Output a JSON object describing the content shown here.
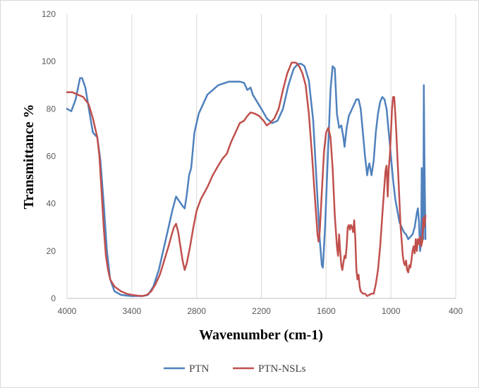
{
  "chart_data": {
    "type": "line",
    "xlabel": "Wavenumber (cm-1)",
    "ylabel": "Transmittance %",
    "xlim": [
      4000,
      400
    ],
    "ylim": [
      0,
      120
    ],
    "x_reversed": true,
    "x_ticks": [
      4000,
      3400,
      2800,
      2200,
      1600,
      1000,
      400
    ],
    "y_ticks": [
      0,
      20,
      40,
      60,
      80,
      100,
      120
    ],
    "grid": "vertical",
    "legend_position": "bottom",
    "series": [
      {
        "name": "PTN",
        "color": "#4f81bd",
        "points": [
          [
            4000,
            80
          ],
          [
            3960,
            79
          ],
          [
            3920,
            84
          ],
          [
            3880,
            93
          ],
          [
            3860,
            93
          ],
          [
            3830,
            89
          ],
          [
            3790,
            78
          ],
          [
            3760,
            70
          ],
          [
            3720,
            68
          ],
          [
            3690,
            58
          ],
          [
            3660,
            40
          ],
          [
            3630,
            20
          ],
          [
            3600,
            8
          ],
          [
            3560,
            3
          ],
          [
            3500,
            1.5
          ],
          [
            3450,
            1.2
          ],
          [
            3400,
            1
          ],
          [
            3300,
            1
          ],
          [
            3250,
            1.5
          ],
          [
            3200,
            5
          ],
          [
            3150,
            12
          ],
          [
            3100,
            22
          ],
          [
            3060,
            30
          ],
          [
            3020,
            38
          ],
          [
            2990,
            43
          ],
          [
            2960,
            41
          ],
          [
            2930,
            39
          ],
          [
            2910,
            38
          ],
          [
            2890,
            44
          ],
          [
            2870,
            52
          ],
          [
            2850,
            55
          ],
          [
            2820,
            70
          ],
          [
            2780,
            78
          ],
          [
            2700,
            86
          ],
          [
            2600,
            90
          ],
          [
            2500,
            91.5
          ],
          [
            2400,
            91.5
          ],
          [
            2360,
            91
          ],
          [
            2330,
            88
          ],
          [
            2300,
            89
          ],
          [
            2280,
            86
          ],
          [
            2200,
            80
          ],
          [
            2150,
            76
          ],
          [
            2100,
            74
          ],
          [
            2050,
            75
          ],
          [
            2000,
            80
          ],
          [
            1950,
            90
          ],
          [
            1900,
            97
          ],
          [
            1860,
            99
          ],
          [
            1830,
            99
          ],
          [
            1800,
            98
          ],
          [
            1760,
            92
          ],
          [
            1720,
            75
          ],
          [
            1690,
            50
          ],
          [
            1660,
            25
          ],
          [
            1640,
            14
          ],
          [
            1630,
            13
          ],
          [
            1610,
            30
          ],
          [
            1580,
            65
          ],
          [
            1560,
            88
          ],
          [
            1540,
            98
          ],
          [
            1520,
            97
          ],
          [
            1500,
            78
          ],
          [
            1480,
            72
          ],
          [
            1460,
            73
          ],
          [
            1440,
            68
          ],
          [
            1430,
            64
          ],
          [
            1410,
            72
          ],
          [
            1390,
            77
          ],
          [
            1370,
            79
          ],
          [
            1340,
            82
          ],
          [
            1320,
            84
          ],
          [
            1300,
            84
          ],
          [
            1280,
            80
          ],
          [
            1260,
            70
          ],
          [
            1240,
            60
          ],
          [
            1220,
            52
          ],
          [
            1210,
            55
          ],
          [
            1200,
            57
          ],
          [
            1180,
            52
          ],
          [
            1160,
            58
          ],
          [
            1140,
            70
          ],
          [
            1120,
            78
          ],
          [
            1100,
            83
          ],
          [
            1080,
            85
          ],
          [
            1060,
            84
          ],
          [
            1040,
            80
          ],
          [
            1020,
            70
          ],
          [
            1000,
            60
          ],
          [
            980,
            50
          ],
          [
            960,
            42
          ],
          [
            940,
            37
          ],
          [
            920,
            32
          ],
          [
            900,
            30
          ],
          [
            880,
            28
          ],
          [
            860,
            27
          ],
          [
            840,
            25
          ],
          [
            820,
            26
          ],
          [
            800,
            27
          ],
          [
            780,
            30
          ],
          [
            760,
            36
          ],
          [
            750,
            38
          ],
          [
            740,
            32
          ],
          [
            730,
            20
          ],
          [
            720,
            24
          ],
          [
            715,
            55
          ],
          [
            710,
            30
          ],
          [
            705,
            40
          ],
          [
            700,
            25
          ],
          [
            695,
            90
          ],
          [
            690,
            60
          ],
          [
            680,
            25
          ]
        ]
      },
      {
        "name": "PTN-NSLs",
        "color": "#c0504d",
        "points": [
          [
            4000,
            87
          ],
          [
            3950,
            87
          ],
          [
            3900,
            86
          ],
          [
            3850,
            85
          ],
          [
            3800,
            82
          ],
          [
            3760,
            76
          ],
          [
            3720,
            68
          ],
          [
            3700,
            60
          ],
          [
            3680,
            45
          ],
          [
            3660,
            30
          ],
          [
            3640,
            18
          ],
          [
            3620,
            12
          ],
          [
            3600,
            8
          ],
          [
            3560,
            5
          ],
          [
            3500,
            3
          ],
          [
            3450,
            2
          ],
          [
            3400,
            1.5
          ],
          [
            3350,
            1.2
          ],
          [
            3300,
            1
          ],
          [
            3260,
            1.5
          ],
          [
            3220,
            3
          ],
          [
            3180,
            6
          ],
          [
            3140,
            10
          ],
          [
            3100,
            16
          ],
          [
            3060,
            22
          ],
          [
            3030,
            27
          ],
          [
            3010,
            30
          ],
          [
            2990,
            31.5
          ],
          [
            2970,
            28
          ],
          [
            2950,
            22
          ],
          [
            2930,
            16
          ],
          [
            2910,
            12
          ],
          [
            2890,
            15
          ],
          [
            2860,
            22
          ],
          [
            2830,
            30
          ],
          [
            2800,
            37
          ],
          [
            2760,
            42
          ],
          [
            2700,
            47
          ],
          [
            2650,
            52
          ],
          [
            2600,
            56
          ],
          [
            2560,
            59
          ],
          [
            2520,
            61
          ],
          [
            2480,
            66
          ],
          [
            2440,
            70
          ],
          [
            2400,
            74
          ],
          [
            2360,
            75
          ],
          [
            2330,
            77
          ],
          [
            2300,
            78.5
          ],
          [
            2260,
            78
          ],
          [
            2220,
            77
          ],
          [
            2180,
            75
          ],
          [
            2150,
            73
          ],
          [
            2120,
            74
          ],
          [
            2080,
            76
          ],
          [
            2040,
            80
          ],
          [
            2000,
            88
          ],
          [
            1960,
            95
          ],
          [
            1920,
            99.5
          ],
          [
            1880,
            99.5
          ],
          [
            1850,
            98
          ],
          [
            1820,
            95
          ],
          [
            1790,
            90
          ],
          [
            1760,
            78
          ],
          [
            1730,
            60
          ],
          [
            1700,
            40
          ],
          [
            1680,
            27
          ],
          [
            1670,
            24
          ],
          [
            1660,
            28
          ],
          [
            1640,
            45
          ],
          [
            1620,
            62
          ],
          [
            1600,
            70
          ],
          [
            1580,
            72
          ],
          [
            1560,
            68
          ],
          [
            1540,
            55
          ],
          [
            1520,
            35
          ],
          [
            1500,
            22
          ],
          [
            1490,
            18
          ],
          [
            1480,
            27
          ],
          [
            1470,
            20
          ],
          [
            1460,
            14
          ],
          [
            1450,
            12
          ],
          [
            1440,
            15
          ],
          [
            1430,
            18
          ],
          [
            1420,
            17
          ],
          [
            1410,
            22
          ],
          [
            1400,
            30
          ],
          [
            1390,
            31
          ],
          [
            1380,
            29
          ],
          [
            1370,
            31
          ],
          [
            1360,
            30
          ],
          [
            1350,
            28
          ],
          [
            1340,
            33
          ],
          [
            1330,
            25
          ],
          [
            1320,
            12
          ],
          [
            1310,
            8
          ],
          [
            1300,
            10
          ],
          [
            1290,
            5
          ],
          [
            1280,
            3
          ],
          [
            1260,
            2
          ],
          [
            1240,
            2
          ],
          [
            1220,
            1
          ],
          [
            1200,
            1.5
          ],
          [
            1180,
            2
          ],
          [
            1160,
            2
          ],
          [
            1140,
            6
          ],
          [
            1120,
            12
          ],
          [
            1100,
            22
          ],
          [
            1080,
            35
          ],
          [
            1060,
            48
          ],
          [
            1050,
            54
          ],
          [
            1040,
            56
          ],
          [
            1030,
            43
          ],
          [
            1020,
            55
          ],
          [
            1010,
            60
          ],
          [
            1000,
            70
          ],
          [
            990,
            80
          ],
          [
            980,
            85
          ],
          [
            970,
            85
          ],
          [
            960,
            78
          ],
          [
            950,
            70
          ],
          [
            940,
            60
          ],
          [
            930,
            50
          ],
          [
            920,
            40
          ],
          [
            910,
            30
          ],
          [
            900,
            24
          ],
          [
            890,
            18
          ],
          [
            880,
            15
          ],
          [
            870,
            14
          ],
          [
            860,
            16
          ],
          [
            850,
            12
          ],
          [
            840,
            11
          ],
          [
            830,
            14
          ],
          [
            820,
            13
          ],
          [
            810,
            16
          ],
          [
            800,
            20
          ],
          [
            790,
            22
          ],
          [
            780,
            19
          ],
          [
            770,
            25
          ],
          [
            760,
            20
          ],
          [
            750,
            25
          ],
          [
            740,
            23
          ],
          [
            730,
            26
          ],
          [
            720,
            22
          ],
          [
            710,
            24
          ],
          [
            700,
            34
          ],
          [
            690,
            30
          ],
          [
            680,
            35
          ]
        ]
      }
    ]
  }
}
